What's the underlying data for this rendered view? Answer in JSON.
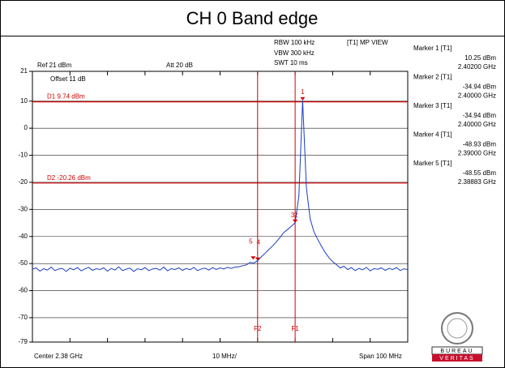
{
  "header": {
    "title": "CH 0 Band edge"
  },
  "chart_data": {
    "type": "line",
    "settings": {
      "rbw": "RBW 100 kHz",
      "vbw": "VBW 300 kHz",
      "swt": "SWT 10 ms",
      "mode": "[T1] MP VIEW",
      "ref": "Ref 21 dBm",
      "att": "Att 20 dB",
      "offset": "Offset 11 dB"
    },
    "x_labels": {
      "center": "Center 2.38 GHz",
      "div": "10 MHz/",
      "span": "Span 100 MHz"
    },
    "xlim": [
      2.33,
      2.43
    ],
    "ylim": [
      -79,
      21
    ],
    "yticks": [
      21,
      10,
      0,
      -10,
      -20,
      -30,
      -40,
      -50,
      -60,
      -70,
      -79
    ],
    "grid": true,
    "x": [
      2.33,
      2.331,
      2.332,
      2.333,
      2.334,
      2.335,
      2.336,
      2.337,
      2.338,
      2.339,
      2.34,
      2.341,
      2.342,
      2.343,
      2.344,
      2.345,
      2.346,
      2.347,
      2.348,
      2.349,
      2.35,
      2.351,
      2.352,
      2.353,
      2.354,
      2.355,
      2.356,
      2.357,
      2.358,
      2.359,
      2.36,
      2.361,
      2.362,
      2.363,
      2.364,
      2.365,
      2.366,
      2.367,
      2.368,
      2.369,
      2.37,
      2.371,
      2.372,
      2.373,
      2.374,
      2.375,
      2.376,
      2.377,
      2.378,
      2.379,
      2.38,
      2.381,
      2.382,
      2.383,
      2.384,
      2.385,
      2.386,
      2.387,
      2.388,
      2.389,
      2.39,
      2.391,
      2.392,
      2.393,
      2.394,
      2.395,
      2.396,
      2.397,
      2.398,
      2.399,
      2.4,
      2.401,
      2.402,
      2.403,
      2.404,
      2.405,
      2.406,
      2.407,
      2.408,
      2.409,
      2.41,
      2.411,
      2.412,
      2.413,
      2.414,
      2.415,
      2.416,
      2.417,
      2.418,
      2.419,
      2.42,
      2.421,
      2.422,
      2.423,
      2.424,
      2.425,
      2.426,
      2.427,
      2.428,
      2.429,
      2.43
    ],
    "series": [
      {
        "color": "#1a3cc8",
        "values": [
          -52.1,
          -51.6,
          -52.8,
          -51.9,
          -52.4,
          -51.3,
          -52.6,
          -52.0,
          -51.8,
          -52.9,
          -51.7,
          -52.3,
          -51.5,
          -52.7,
          -52.0,
          -51.4,
          -52.5,
          -51.9,
          -52.2,
          -51.6,
          -52.8,
          -51.8,
          -52.4,
          -51.2,
          -52.6,
          -52.1,
          -51.7,
          -52.9,
          -51.9,
          -52.3,
          -51.5,
          -52.6,
          -52.0,
          -51.8,
          -52.4,
          -51.3,
          -52.7,
          -51.9,
          -52.2,
          -51.6,
          -52.5,
          -51.8,
          -52.3,
          -51.4,
          -52.6,
          -52.0,
          -51.7,
          -52.4,
          -51.5,
          -52.2,
          -51.6,
          -52.0,
          -51.4,
          -51.8,
          -51.3,
          -51.2,
          -50.8,
          -50.5,
          -49.6,
          -49.8,
          -48.93,
          -47.5,
          -46.2,
          -44.8,
          -43.5,
          -42.0,
          -40.3,
          -38.5,
          -37.4,
          -36.2,
          -34.94,
          -25.0,
          10.25,
          -22.0,
          -33.5,
          -38.2,
          -41.0,
          -43.6,
          -45.9,
          -47.8,
          -49.3,
          -50.4,
          -51.6,
          -51.0,
          -52.2,
          -51.5,
          -52.6,
          -51.8,
          -52.3,
          -51.4,
          -52.7,
          -51.9,
          -52.1,
          -51.6,
          -52.5,
          -51.8,
          -52.2,
          -51.5,
          -52.6,
          -51.9,
          -52.3
        ]
      }
    ],
    "display_lines": [
      {
        "value": 9.74,
        "label": "D1 9.74 dBm"
      },
      {
        "value": -20.26,
        "label": "D2 -20.26 dBm"
      }
    ],
    "frequency_lines": [
      {
        "value": 2.4,
        "label": "F1"
      },
      {
        "value": 2.39,
        "label": "F2"
      }
    ],
    "markers": [
      {
        "id": "1",
        "name": "Marker 1 [T1]",
        "level": {
          "value": 10.25,
          "label": "10.25 dBm"
        },
        "freq": {
          "value": 2.402,
          "label": "2.40200 GHz"
        }
      },
      {
        "id": "2",
        "name": "Marker 2 [T1]",
        "level": {
          "value": -34.94,
          "label": "-34.94 dBm"
        },
        "freq": {
          "value": 2.4,
          "label": "2.40000 GHz"
        }
      },
      {
        "id": "3",
        "name": "Marker 3 [T1]",
        "level": {
          "value": -34.94,
          "label": "-34.94 dBm"
        },
        "freq": {
          "value": 2.4,
          "label": "2.40000 GHz"
        }
      },
      {
        "id": "4",
        "name": "Marker 4 [T1]",
        "level": {
          "value": -48.93,
          "label": "-48.93 dBm"
        },
        "freq": {
          "value": 2.39,
          "label": "2.39000 GHz"
        }
      },
      {
        "id": "5",
        "name": "Marker 5 [T1]",
        "level": {
          "value": -48.55,
          "label": "-48.55 dBm"
        },
        "freq": {
          "value": 2.38883,
          "label": "2.38883 GHz"
        }
      }
    ],
    "logo": {
      "top": "BUREAU",
      "bottom": "VERITAS"
    }
  }
}
